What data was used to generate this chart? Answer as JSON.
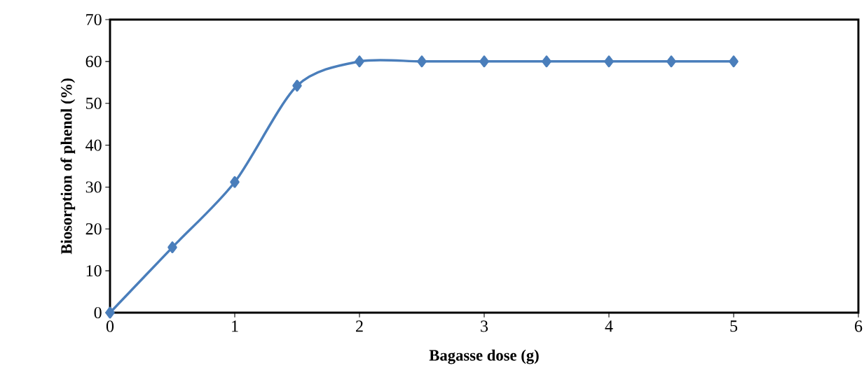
{
  "chart_data": {
    "type": "line",
    "xlabel": "Bagasse dose (g)",
    "ylabel": "Biosorption of phenol (%)",
    "x": [
      0,
      0.5,
      1,
      1.5,
      2,
      2.5,
      3,
      3.5,
      4,
      4.5,
      5
    ],
    "series": [
      {
        "color": "#4a7ebb",
        "values": [
          0,
          15.6,
          31.2,
          54.2,
          60,
          60,
          60,
          60,
          60,
          60,
          60
        ]
      }
    ],
    "xlim": [
      0,
      6
    ],
    "xticks": [
      0,
      1,
      2,
      3,
      4,
      5,
      6
    ],
    "ylim": [
      0,
      70
    ],
    "yticks": [
      0,
      10,
      20,
      30,
      40,
      50,
      60,
      70
    ],
    "grid": false,
    "marker": "diamond",
    "line_style": "solid"
  }
}
